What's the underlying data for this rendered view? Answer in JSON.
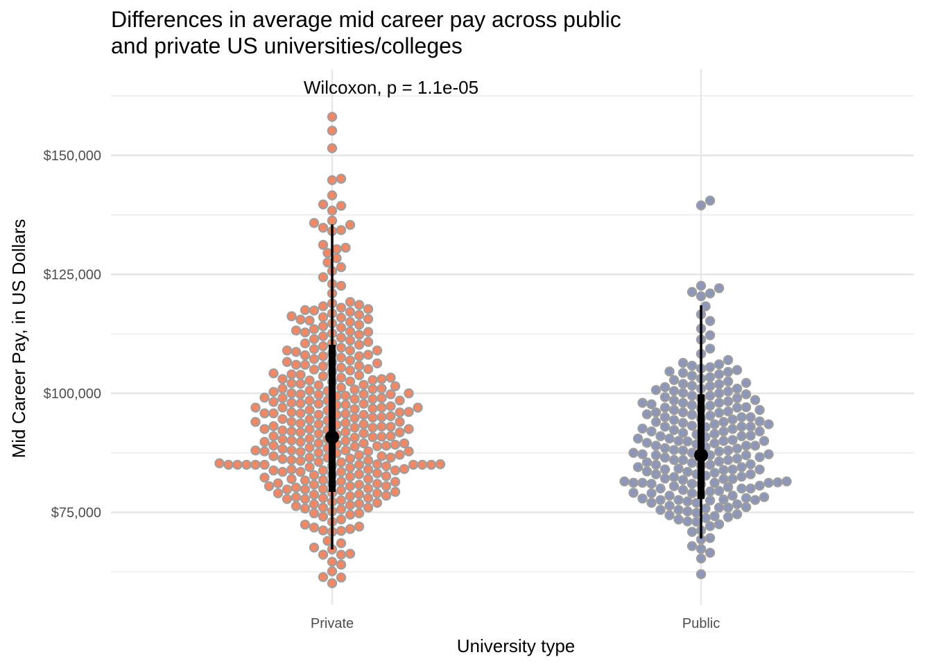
{
  "chart_data": {
    "type": "scatter",
    "subtype": "beeswarm",
    "title": [
      "Differences in average mid career pay across public",
      "and private US universities/colleges"
    ],
    "xlabel": "University type",
    "ylabel": "Mid Career Pay, in US Dollars",
    "annotation": "Wilcoxon, p = 1.1e-05",
    "categories": [
      "Private",
      "Public"
    ],
    "ylim": [
      58000,
      167000
    ],
    "yticks": [
      75000,
      100000,
      125000,
      150000
    ],
    "ytick_labels": [
      "$75,000",
      "$100,000",
      "$125,000",
      "$150,000"
    ],
    "grid": true,
    "legend": "none",
    "colors": {
      "Private": "#ee8866",
      "Public": "#8e97b7",
      "point_outline": "#9e9e9e",
      "summary": "#000000",
      "grid": "#e6e6e6"
    },
    "summaries": [
      {
        "category": "Private",
        "median": 90800,
        "interval_inner": [
          79300,
          110200
        ],
        "interval_outer": [
          67200,
          135500
        ]
      },
      {
        "category": "Public",
        "median": 87000,
        "interval_inner": [
          77800,
          99800
        ],
        "interval_outer": [
          69500,
          118500
        ]
      }
    ],
    "series": [
      {
        "name": "Private",
        "values": [
          60100,
          61300,
          61400,
          62600,
          64000,
          64600,
          66100,
          66100,
          66300,
          67200,
          67600,
          68500,
          70900,
          71100,
          71200,
          71500,
          72400,
          73500,
          74100,
          74500,
          74800,
          75200,
          75600,
          76000,
          76300,
          76500,
          76700,
          77200,
          77500,
          77800,
          78000,
          78200,
          78400,
          78700,
          79000,
          79100,
          79300,
          79600,
          79900,
          80200,
          80500,
          80800,
          81100,
          81400,
          81700,
          82000,
          82300,
          82600,
          82900,
          83200,
          83500,
          83800,
          84100,
          84400,
          84700,
          85000,
          85000,
          85000,
          85000,
          85000,
          85000,
          85000,
          85000,
          85100,
          85100,
          85300,
          85600,
          85900,
          86200,
          86500,
          86800,
          87100,
          87400,
          87700,
          88000,
          88300,
          88600,
          88900,
          89200,
          89500,
          89800,
          90100,
          90300,
          90400,
          90700,
          91000,
          91300,
          91600,
          91900,
          92200,
          92500,
          92800,
          93100,
          93400,
          93500,
          93700,
          94000,
          94300,
          94600,
          94900,
          95200,
          95500,
          95800,
          96100,
          96400,
          96700,
          97000,
          97300,
          97600,
          97900,
          98200,
          98500,
          98800,
          99100,
          99400,
          99700,
          100000,
          100300,
          100600,
          100900,
          101000,
          101200,
          101500,
          101800,
          102100,
          102400,
          102700,
          103000,
          103300,
          103600,
          103900,
          104200,
          104500,
          104800,
          105100,
          105400,
          105700,
          106000,
          106300,
          106600,
          106900,
          107200,
          107500,
          107800,
          108100,
          108400,
          108700,
          109000,
          109300,
          109600,
          109900,
          110200,
          110500,
          110800,
          111100,
          111400,
          111700,
          112000,
          112300,
          112600,
          112900,
          113200,
          113500,
          113800,
          114100,
          114400,
          114700,
          115000,
          115300,
          115600,
          115900,
          116200,
          116500,
          116800,
          117100,
          117400,
          117700,
          118000,
          118300,
          118600,
          118900,
          119200,
          121000,
          122600,
          123000,
          124400,
          125700,
          126500,
          127500,
          128400,
          129500,
          130300,
          130600,
          131200,
          134100,
          134300,
          134800,
          135400,
          135800,
          136300,
          138400,
          139400,
          139700,
          141600,
          144800,
          145100,
          151500,
          155200,
          158100,
          72000,
          76000,
          78500,
          80500,
          82500,
          84000,
          86000,
          87500,
          88500,
          89500,
          91500,
          92500,
          94500,
          95500,
          96500,
          97500,
          98500,
          99500,
          100500,
          102500,
          104000,
          106500,
          108000,
          110500,
          113000,
          116000,
          83500,
          86500,
          88000,
          89000,
          90500,
          92000,
          93500,
          95000,
          96000,
          97000,
          98000,
          99000,
          80000,
          81500,
          83000,
          84500,
          86300,
          87800,
          89300,
          90900,
          92300,
          94000,
          95700,
          97800,
          99800,
          101700,
          103800,
          76800,
          79800,
          82800,
          85800,
          88800,
          91800,
          94800,
          97800,
          100800,
          103300,
          105800,
          107800,
          74800,
          77800,
          80800,
          83800,
          86800,
          89800,
          92800,
          95800,
          98800,
          69000,
          73000,
          77000,
          81000,
          85500,
          89000,
          93000,
          97000,
          101000,
          105000,
          109000,
          112800,
          115500,
          117500,
          71800,
          75800,
          79800,
          83800,
          87800,
          91800,
          95800,
          99800,
          78800,
          81800,
          84800,
          87800,
          90800,
          93800,
          96800,
          99800,
          102800,
          79000,
          82000,
          85000,
          88000,
          91000,
          94000,
          97000,
          100000,
          103000,
          106000,
          109000,
          78000,
          81000,
          84000,
          87000,
          90000,
          93000,
          96000,
          99000,
          102000,
          80500,
          83500,
          86500,
          89500,
          92500,
          95500,
          98500
        ]
      },
      {
        "name": "Public",
        "values": [
          62000,
          65300,
          66500,
          67300,
          67900,
          69300,
          69600,
          70900,
          71200,
          72100,
          72500,
          73100,
          73500,
          73800,
          74200,
          74400,
          74600,
          74900,
          75200,
          75500,
          75800,
          76100,
          76400,
          76700,
          77000,
          77300,
          77600,
          77600,
          77600,
          77700,
          77900,
          78200,
          78500,
          78800,
          79100,
          79400,
          79700,
          80000,
          80300,
          80600,
          80900,
          81200,
          81200,
          81200,
          81200,
          81300,
          81500,
          81800,
          82100,
          82400,
          82700,
          83000,
          83300,
          83600,
          83900,
          84200,
          84500,
          84800,
          85100,
          85400,
          85700,
          86000,
          86300,
          86600,
          86900,
          87200,
          87200,
          87500,
          87800,
          88100,
          88400,
          88700,
          89000,
          89300,
          89600,
          89900,
          90200,
          90500,
          90800,
          91100,
          91400,
          91700,
          92000,
          92300,
          92600,
          92900,
          93200,
          93500,
          93800,
          94100,
          94400,
          94700,
          95000,
          95300,
          95600,
          95900,
          96200,
          96500,
          96800,
          97100,
          97400,
          97700,
          98000,
          98300,
          98600,
          98900,
          99200,
          99500,
          99800,
          100100,
          100400,
          100700,
          101000,
          101000,
          101300,
          101600,
          101900,
          102200,
          102500,
          102800,
          103100,
          103400,
          103700,
          104000,
          104300,
          104600,
          104900,
          105200,
          105500,
          105800,
          106100,
          106400,
          107000,
          108300,
          109400,
          111300,
          112200,
          113600,
          115200,
          116600,
          118300,
          120400,
          121000,
          121300,
          122100,
          122600,
          139500,
          140500,
          76000,
          79000,
          82000,
          85000,
          88000,
          91000,
          94000,
          97000,
          74000,
          77000,
          80000,
          83000,
          86000,
          89000,
          92000,
          95000,
          98000,
          75500,
          78500,
          81500,
          84500,
          87500,
          90500,
          93500,
          96500,
          99500,
          73000,
          76000,
          79000,
          82000,
          85000,
          88000,
          91000,
          94000,
          97000,
          100000,
          78000,
          81000,
          84000,
          87000,
          90000,
          93000,
          96000,
          99000,
          102000,
          79500,
          82500,
          85500,
          88500,
          91500,
          94500,
          97500,
          100500,
          80000,
          83000,
          86000,
          89000,
          92000,
          95000,
          98000,
          101500,
          104500,
          77500,
          80500,
          83500,
          86500,
          89500,
          92500,
          95500,
          98500,
          84000,
          87000,
          90000,
          93000,
          96000,
          81000,
          84000,
          87000,
          90000,
          93000
        ]
      }
    ]
  }
}
